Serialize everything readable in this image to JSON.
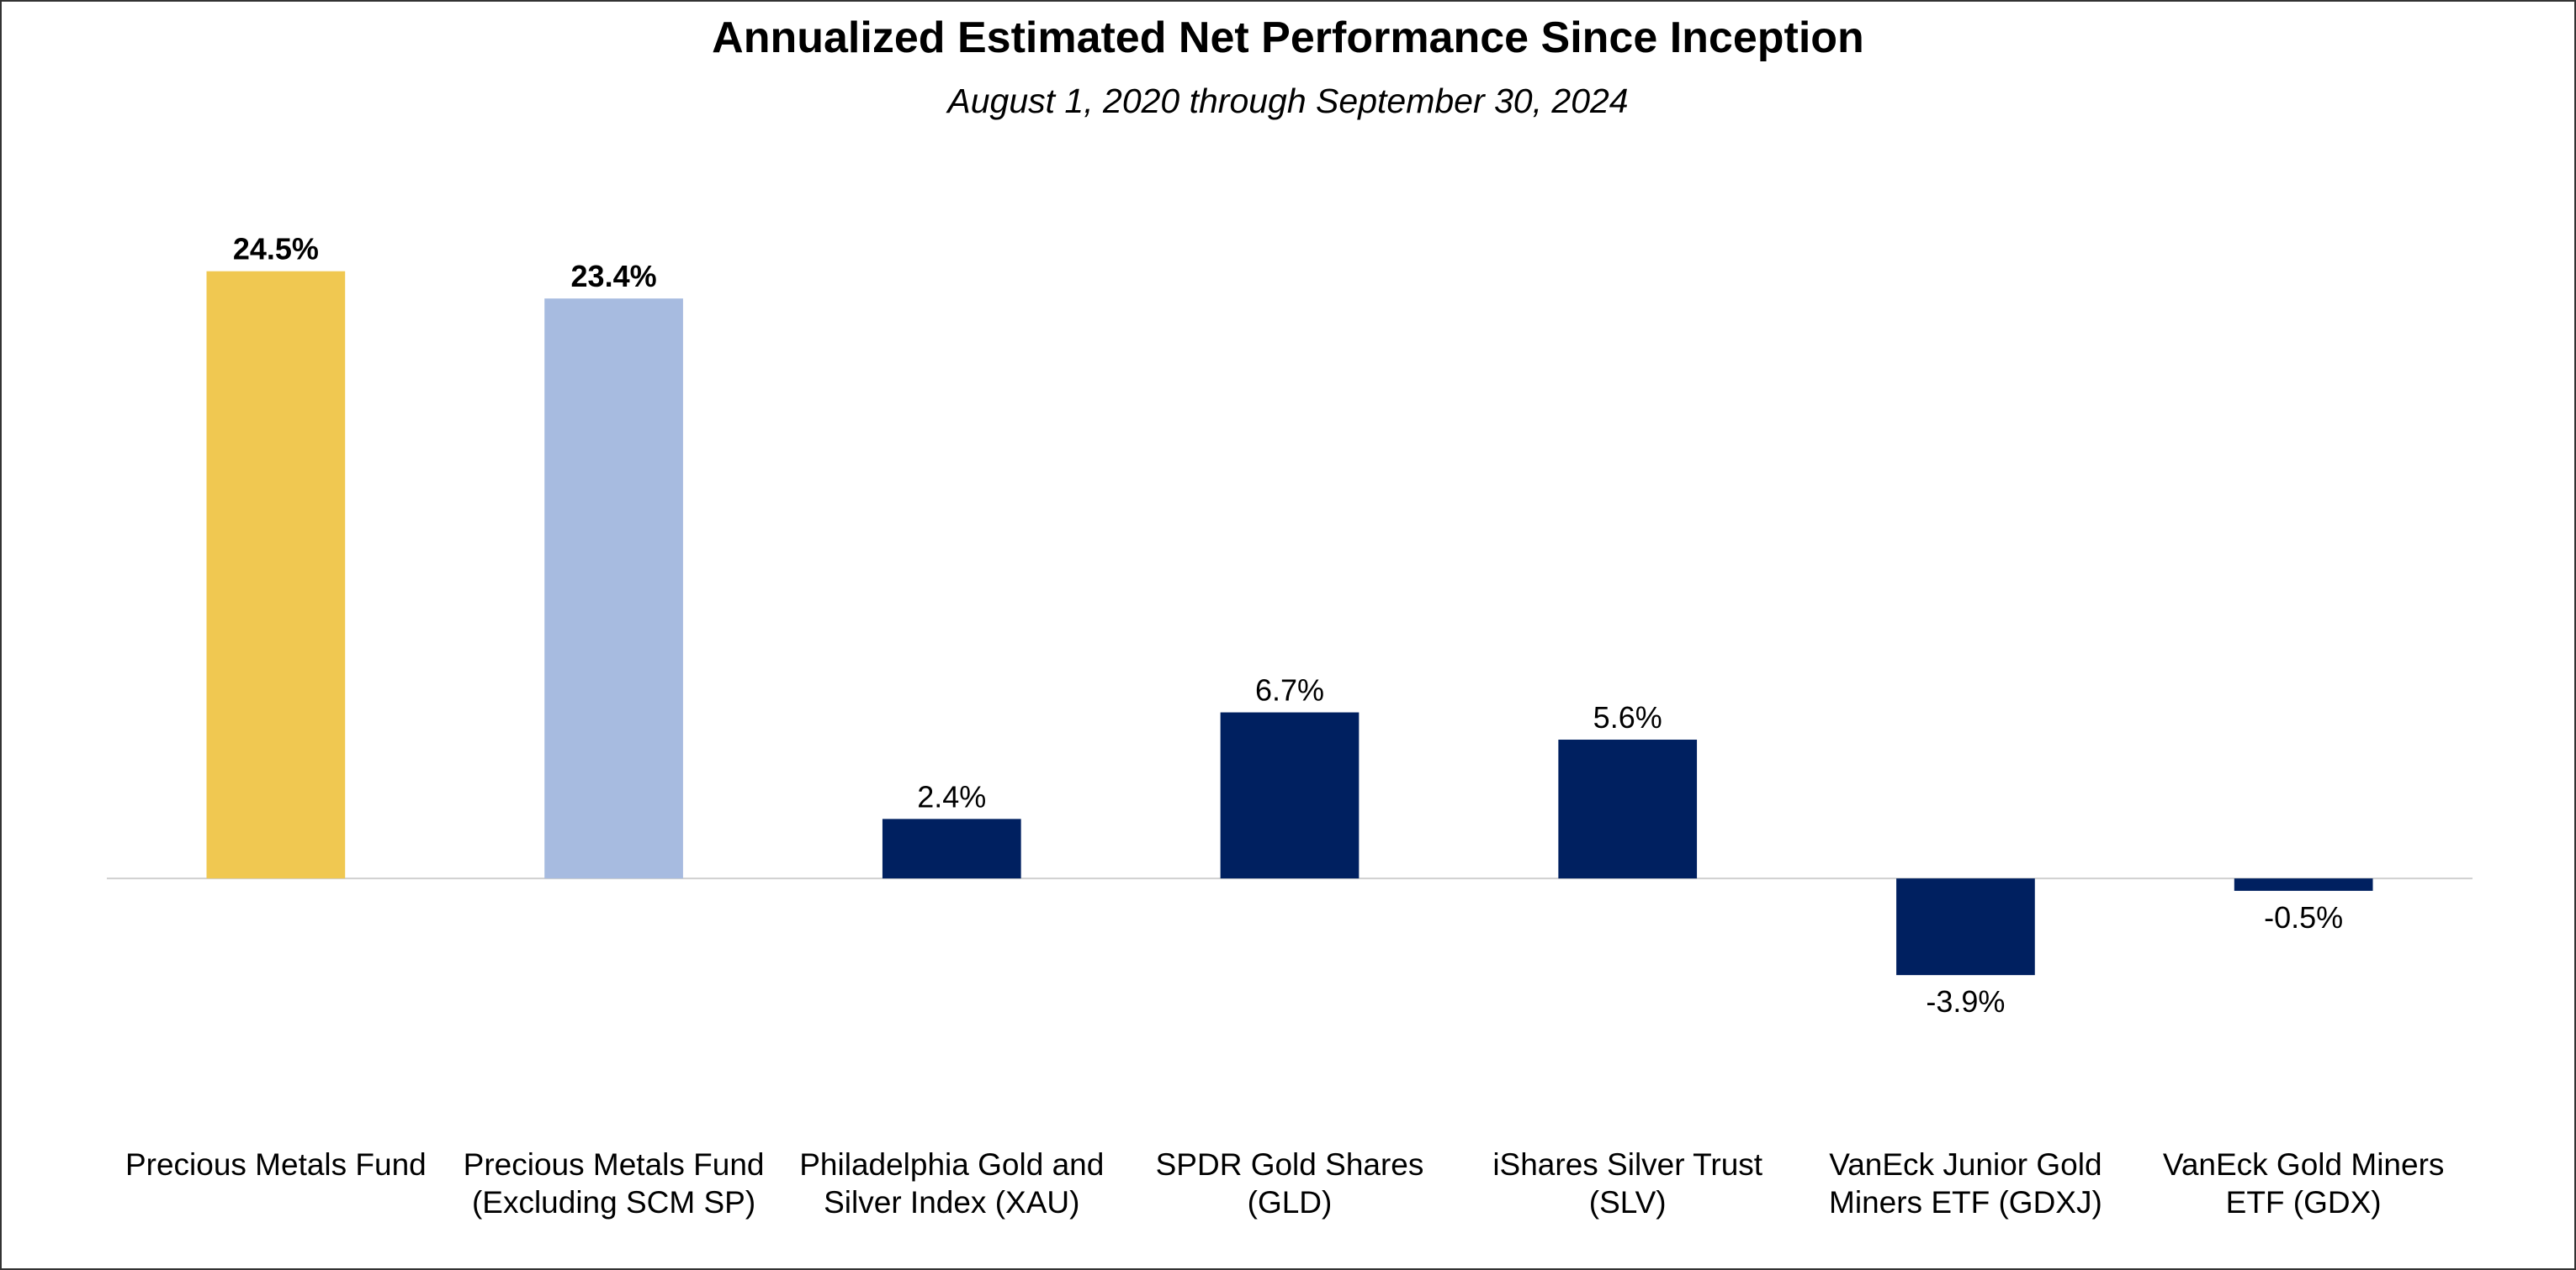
{
  "chart_data": {
    "type": "bar",
    "title": "Annualized Estimated Net Performance Since Inception",
    "subtitle": "August 1, 2020 through September 30, 2024",
    "categories": [
      "Precious Metals Fund",
      "Precious Metals Fund (Excluding SCM SP)",
      "Philadelphia Gold and Silver Index (XAU)",
      "SPDR Gold Shares (GLD)",
      "iShares Silver Trust (SLV)",
      "VanEck Junior Gold Miners ETF (GDXJ)",
      "VanEck Gold Miners ETF (GDX)"
    ],
    "values": [
      24.5,
      23.4,
      2.4,
      6.7,
      5.6,
      -3.9,
      -0.5
    ],
    "value_labels": [
      "24.5%",
      "23.4%",
      "2.4%",
      "6.7%",
      "5.6%",
      "-3.9%",
      "-0.5%"
    ],
    "colors": [
      "#f0c851",
      "#a7bbe0",
      "#002060",
      "#002060",
      "#002060",
      "#002060",
      "#002060"
    ],
    "bold_labels": [
      true,
      true,
      false,
      false,
      false,
      false,
      false
    ],
    "ylim": [
      -10,
      27
    ]
  }
}
